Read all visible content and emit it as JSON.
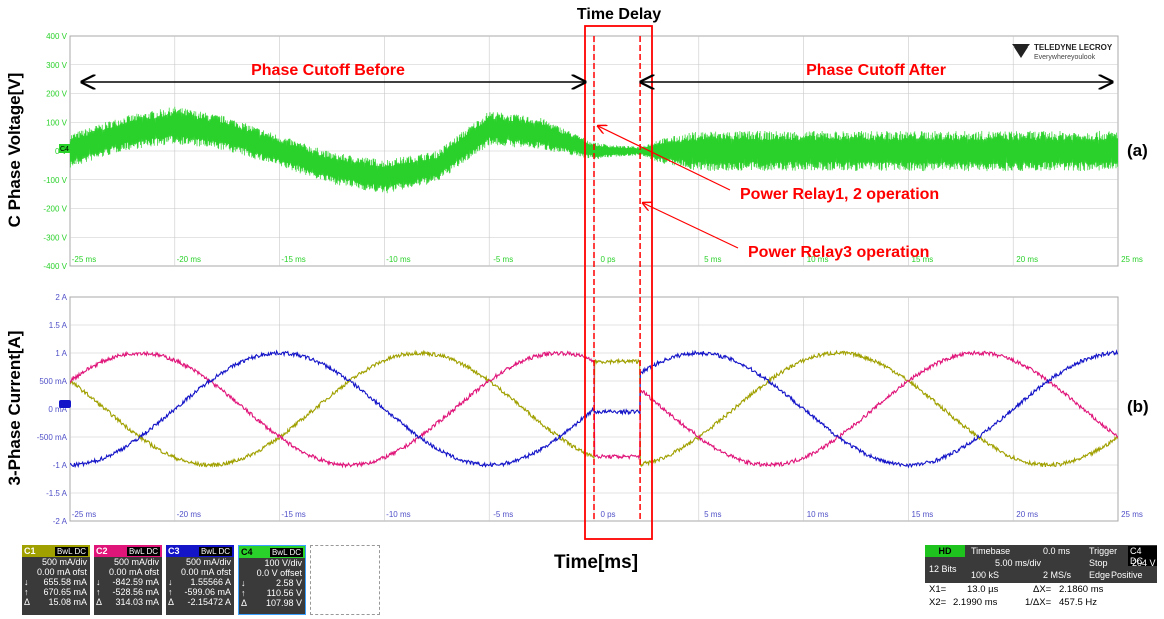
{
  "figure_title": "Time Delay",
  "x_axis_label": "Time[ms]",
  "top_panel": {
    "ylabel": "C Phase Voltage[V]",
    "tag": "(a)",
    "before_label": "Phase Cutoff Before",
    "after_label": "Phase Cutoff After",
    "relay12_label": "Power Relay1, 2 operation",
    "relay3_label": "Power Relay3 operation",
    "brand_name": "TELEDYNE LECROY",
    "brand_slogan": "Everywhereyoulook",
    "channel_tag": "C4"
  },
  "bottom_panel": {
    "ylabel": "3-Phase Current[A]",
    "tag": "(b)"
  },
  "colors": {
    "c1": "#a0a000",
    "c2": "#e0157a",
    "c3": "#1414c8",
    "c4": "#2bd12b",
    "annotation": "#ff0000",
    "grid": "#c8c8c8"
  },
  "chart_data": [
    {
      "type": "line",
      "name": "C Phase Voltage",
      "ylabel": "C Phase Voltage[V]",
      "xlabel": "",
      "xlim": [
        -25,
        25
      ],
      "ylim": [
        -400,
        400
      ],
      "x_ticks": [
        "-25 ms",
        "-20 ms",
        "-15 ms",
        "-10 ms",
        "-5 ms",
        "0 ps",
        "5 ms",
        "10 ms",
        "15 ms",
        "20 ms",
        "25 ms"
      ],
      "y_ticks": [
        "400 V",
        "300 V",
        "200 V",
        "100 V",
        "0 V",
        "-100 V",
        "-200 V",
        "-300 V",
        "-400 V"
      ],
      "series": [
        {
          "name": "C4",
          "envelope_center_x": [
            -25,
            -22.5,
            -20,
            -17.5,
            -15,
            -12.5,
            -10,
            -7.5,
            -5,
            -2.5,
            0,
            1,
            2.2,
            3,
            5,
            10,
            15,
            20,
            25
          ],
          "envelope_center_y": [
            0,
            60,
            90,
            60,
            0,
            -60,
            -90,
            -55,
            80,
            60,
            0,
            0,
            0,
            0,
            0,
            0,
            0,
            0,
            0
          ],
          "envelope_halfwidth": [
            60,
            60,
            65,
            60,
            55,
            55,
            60,
            55,
            60,
            55,
            30,
            20,
            15,
            40,
            70,
            70,
            70,
            70,
            70
          ]
        }
      ],
      "grid": true
    },
    {
      "type": "line",
      "name": "3-Phase Current",
      "ylabel": "3-Phase Current[A]",
      "xlabel": "Time[ms]",
      "xlim": [
        -25,
        25
      ],
      "ylim": [
        -2,
        2
      ],
      "x_ticks": [
        "-25 ms",
        "-20 ms",
        "-15 ms",
        "-10 ms",
        "-5 ms",
        "0 ps",
        "5 ms",
        "10 ms",
        "15 ms",
        "20 ms",
        "25 ms"
      ],
      "y_ticks": [
        "2 A",
        "1.5 A",
        "1 A",
        "500 mA",
        "0 mA",
        "-500 mA",
        "-1 A",
        "-1.5 A",
        "-2 A"
      ],
      "series": [
        {
          "name": "C1",
          "amplitude": 1.0,
          "frequency_hz": 50,
          "phase_deg": 240
        },
        {
          "name": "C2",
          "amplitude": 1.0,
          "frequency_hz": 50,
          "phase_deg": 120
        },
        {
          "name": "C3",
          "amplitude": 1.0,
          "frequency_hz": 50,
          "phase_deg": 0
        }
      ],
      "markers": [
        {
          "name": "Power Relay1, 2 operation",
          "x": 0.0
        },
        {
          "name": "Power Relay3 operation",
          "x": 2.199
        }
      ],
      "grid": true
    }
  ],
  "channels": [
    {
      "tag": "C1",
      "flags": "BwL DC",
      "vdiv": "500 mA/div",
      "offset": "0.00 mA ofst",
      "v1": "655.58 mA",
      "v2": "670.65 mA",
      "dv": "15.08 mA"
    },
    {
      "tag": "C2",
      "flags": "BwL DC",
      "vdiv": "500 mA/div",
      "offset": "0.00 mA ofst",
      "v1": "-842.59 mA",
      "v2": "-528.56 mA",
      "dv": "314.03 mA"
    },
    {
      "tag": "C3",
      "flags": "BwL DC",
      "vdiv": "500 mA/div",
      "offset": "0.00 mA ofst",
      "v1": "1.55566 A",
      "v2": "-599.06 mA",
      "dv": "-2.15472 A"
    },
    {
      "tag": "C4",
      "flags": "BwL DC",
      "vdiv": "100 V/div",
      "offset": "0.0 V offset",
      "v1": "2.58 V",
      "v2": "110.56 V",
      "dv": "107.98 V"
    }
  ],
  "timebase": {
    "hd": "HD",
    "bits": "12 Bits",
    "label": "Timebase",
    "delay": "0.0 ms",
    "tdiv": "5.00 ms/div",
    "samples": "100 kS",
    "rate": "2 MS/s",
    "trigger_label": "Trigger",
    "trigger_flags": "C4 DC",
    "trigger_level": "204 V",
    "mode": "Stop",
    "type": "Edge",
    "slope": "Positive"
  },
  "cursors": {
    "x1": "X1=",
    "x1_val": "13.0 µs",
    "dx": "ΔX=",
    "dx_val": "2.1860 ms",
    "x2": "X2=",
    "x2_val": "2.1990 ms",
    "inv_dx": "1/ΔX=",
    "inv_dx_val": "457.5 Hz"
  }
}
